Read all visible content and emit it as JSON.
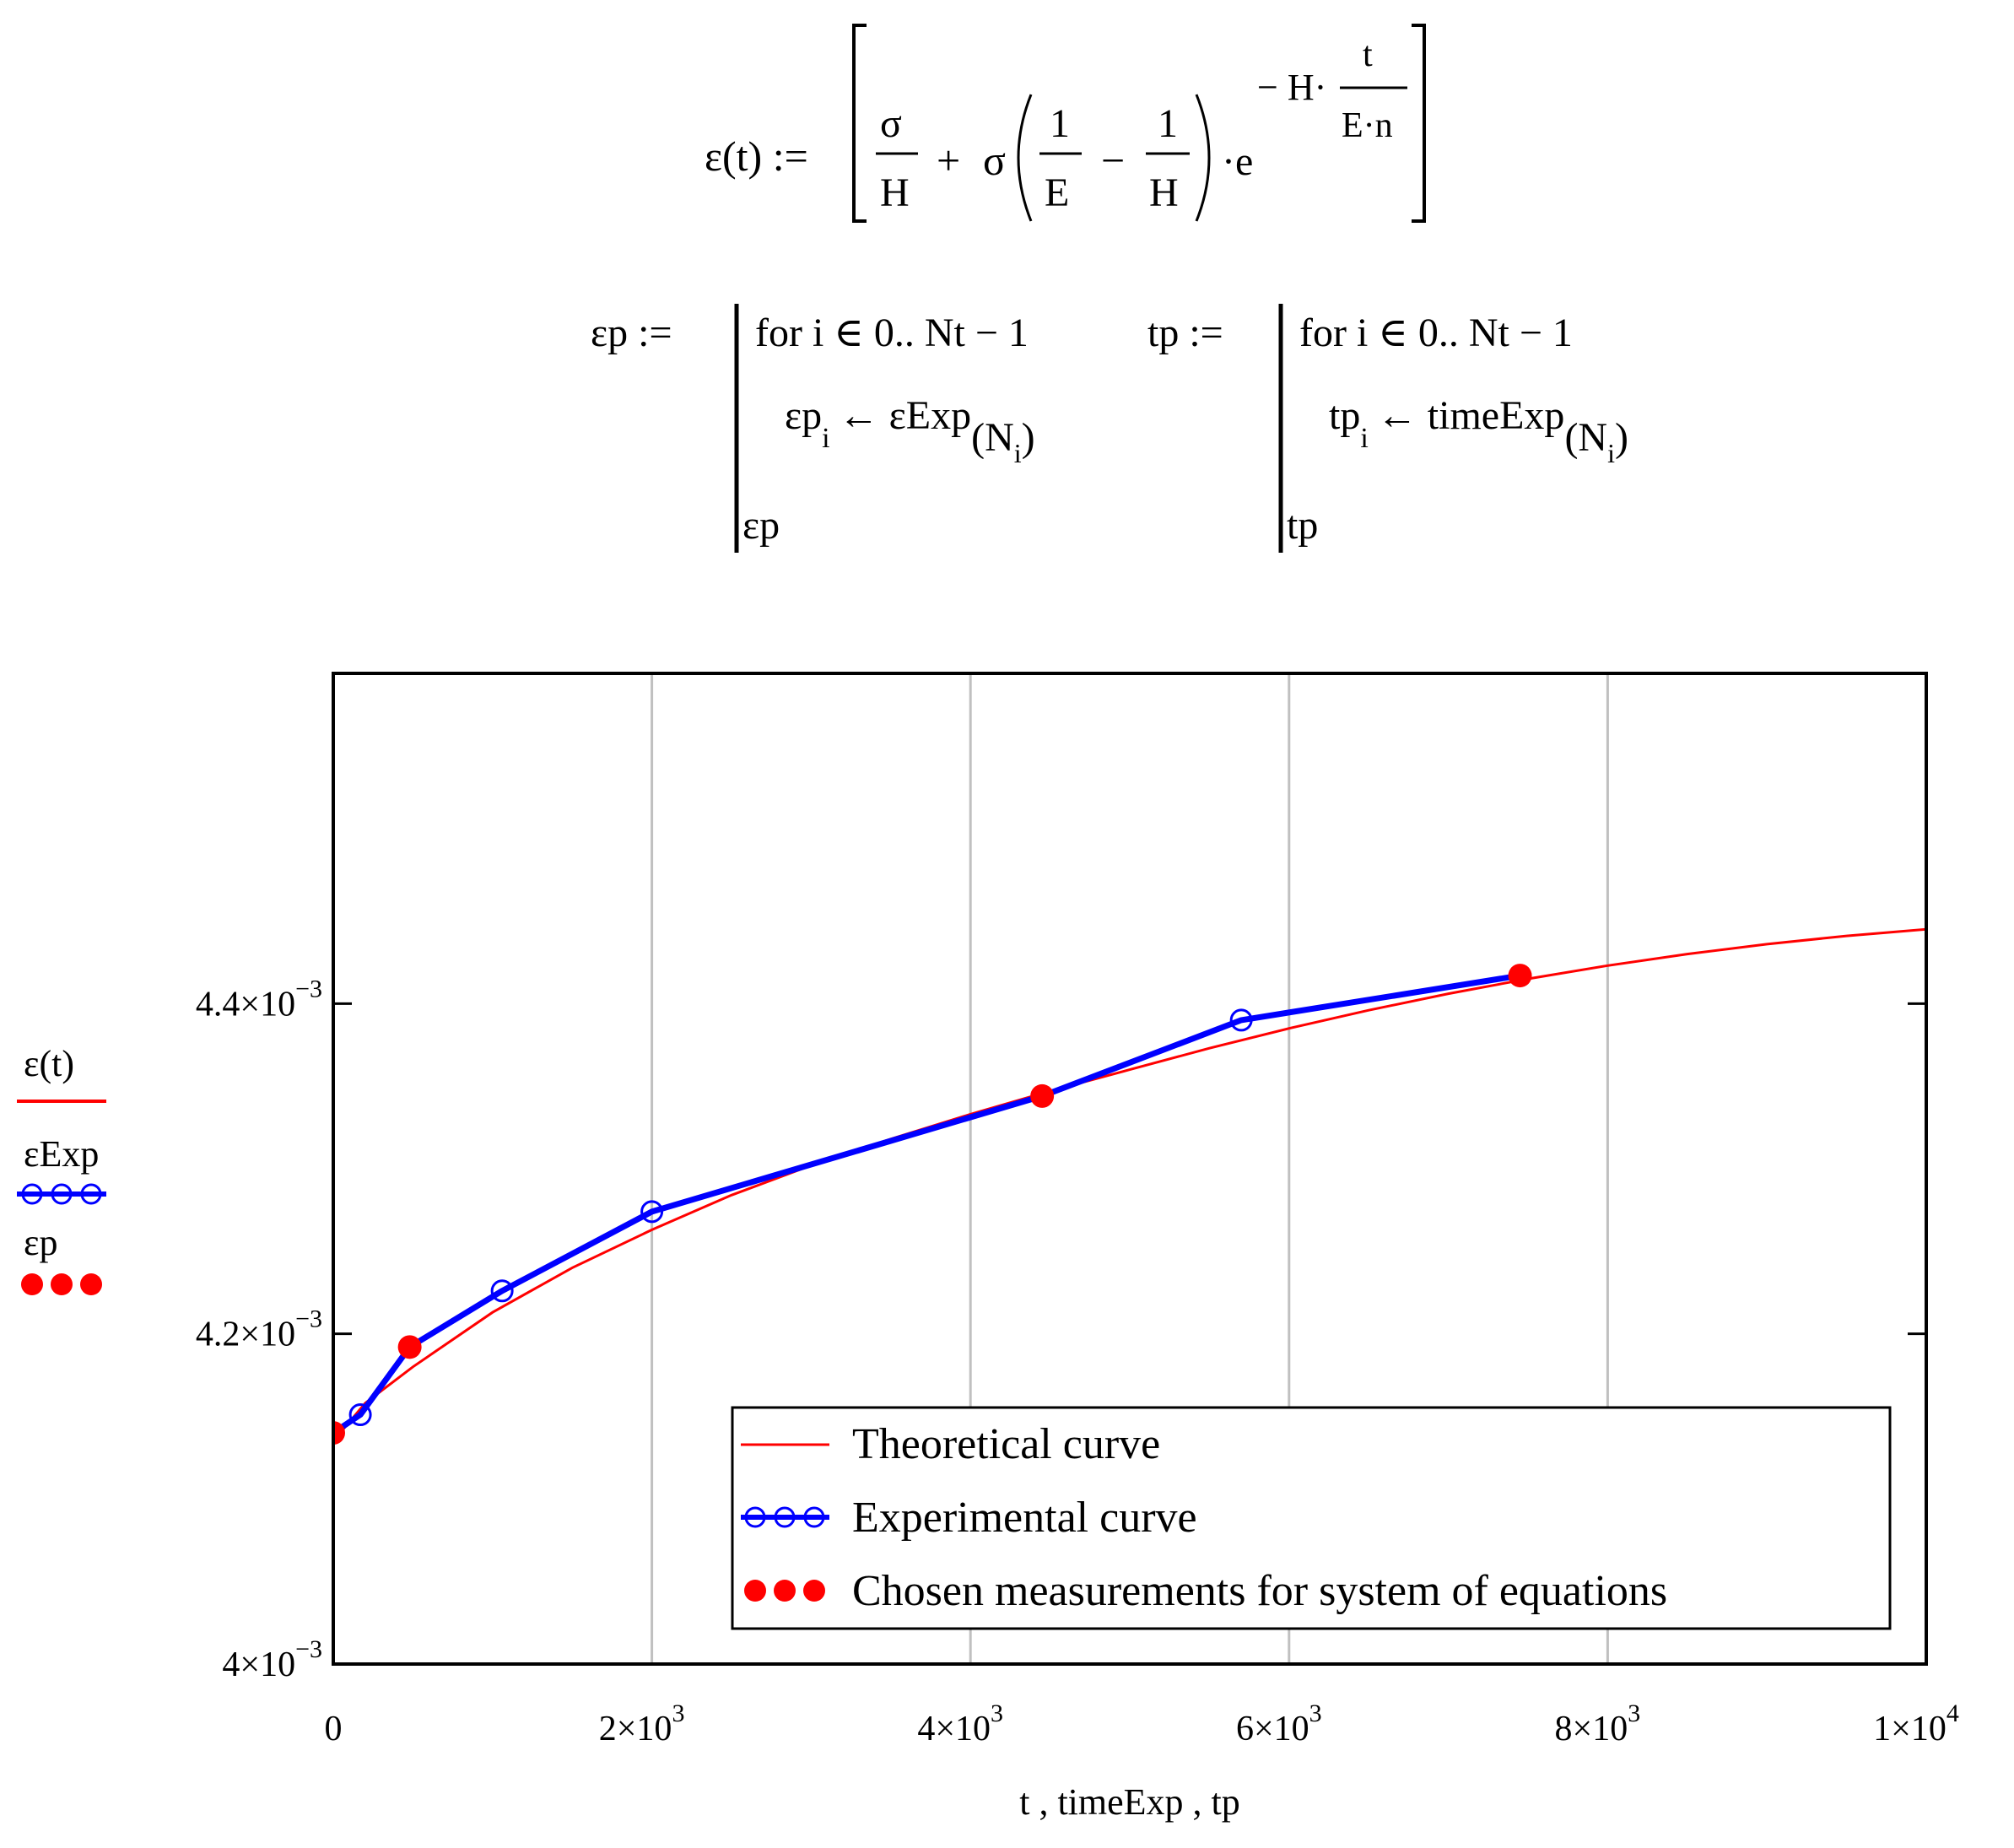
{
  "formula": {
    "lhs": "ε(t) :=",
    "sigma": "σ",
    "H": "H",
    "plus": "+",
    "minus": "−",
    "one": "1",
    "E": "E",
    "dot": "·",
    "e": "e",
    "exp_prefix": "− H·",
    "exp_num": "t",
    "exp_den": "E·n"
  },
  "programs": {
    "ep_lhs": "εp :=",
    "ep_line1": "for  i ∈ 0.. Nt − 1",
    "ep_line2_a": "εp",
    "ep_line2_sub": "i",
    "ep_line2_b": "← εExp",
    "ep_line2_idx": "(N",
    "ep_line2_idx_sub": "i",
    "ep_line2_idx_close": ")",
    "ep_ret": "εp",
    "tp_lhs": "tp :=",
    "tp_line1": "for  i ∈ 0.. Nt − 1",
    "tp_line2_a": "tp",
    "tp_line2_sub": "i",
    "tp_line2_b": "← timeExp",
    "tp_line2_idx": "(N",
    "tp_line2_idx_sub": "i",
    "tp_line2_idx_close": ")",
    "tp_ret": "tp"
  },
  "chart_data": {
    "type": "line",
    "xlabel": "t , timeExp , tp",
    "xlim": [
      0,
      10000
    ],
    "ylim": [
      0.004,
      0.0046
    ],
    "grid": "vertical",
    "x_ticks": [
      {
        "v": 0,
        "mant": "0",
        "exp": ""
      },
      {
        "v": 2000,
        "mant": "2×10",
        "exp": "3"
      },
      {
        "v": 4000,
        "mant": "4×10",
        "exp": "3"
      },
      {
        "v": 6000,
        "mant": "6×10",
        "exp": "3"
      },
      {
        "v": 8000,
        "mant": "8×10",
        "exp": "3"
      },
      {
        "v": 10000,
        "mant": "1×10",
        "exp": "4"
      }
    ],
    "y_ticks": [
      {
        "v": 0.004,
        "mant": "4×10",
        "exp": "−3"
      },
      {
        "v": 0.0042,
        "mant": "4.2×10",
        "exp": "−3"
      },
      {
        "v": 0.0044,
        "mant": "4.4×10",
        "exp": "−3"
      }
    ],
    "side_legend": {
      "theory": "ε(t)",
      "exp": "εExp",
      "points": "εp"
    },
    "legend_position": "bottom-right",
    "series": [
      {
        "name": "Theoretical curve",
        "kind": "line",
        "color": "#ff0000",
        "x": [
          0,
          200,
          500,
          1000,
          1500,
          2000,
          2500,
          3000,
          3500,
          4000,
          4500,
          5000,
          5500,
          6000,
          6500,
          7000,
          7500,
          8000,
          8500,
          9000,
          9500,
          10000
        ],
        "y": [
          0.004135,
          0.004158,
          0.00418,
          0.004213,
          0.00424,
          0.004263,
          0.004284,
          0.004302,
          0.004318,
          0.004333,
          0.004347,
          0.00436,
          0.004373,
          0.004385,
          0.004396,
          0.004406,
          0.004415,
          0.004423,
          0.00443,
          0.004436,
          0.004441,
          0.004445
        ]
      },
      {
        "name": "Experimental curve",
        "kind": "line-markers",
        "color": "#0000ff",
        "x": [
          0,
          170,
          480,
          1060,
          2000,
          4450,
          5700,
          7450
        ],
        "y": [
          0.00414,
          0.004151,
          0.004192,
          0.004226,
          0.004274,
          0.004344,
          0.00439,
          0.004417
        ]
      },
      {
        "name": "Chosen measurements for system of equations",
        "kind": "points",
        "color": "#ff0000",
        "x": [
          0,
          480,
          4450,
          7450
        ],
        "y": [
          0.00414,
          0.004192,
          0.004344,
          0.004417
        ]
      }
    ]
  }
}
